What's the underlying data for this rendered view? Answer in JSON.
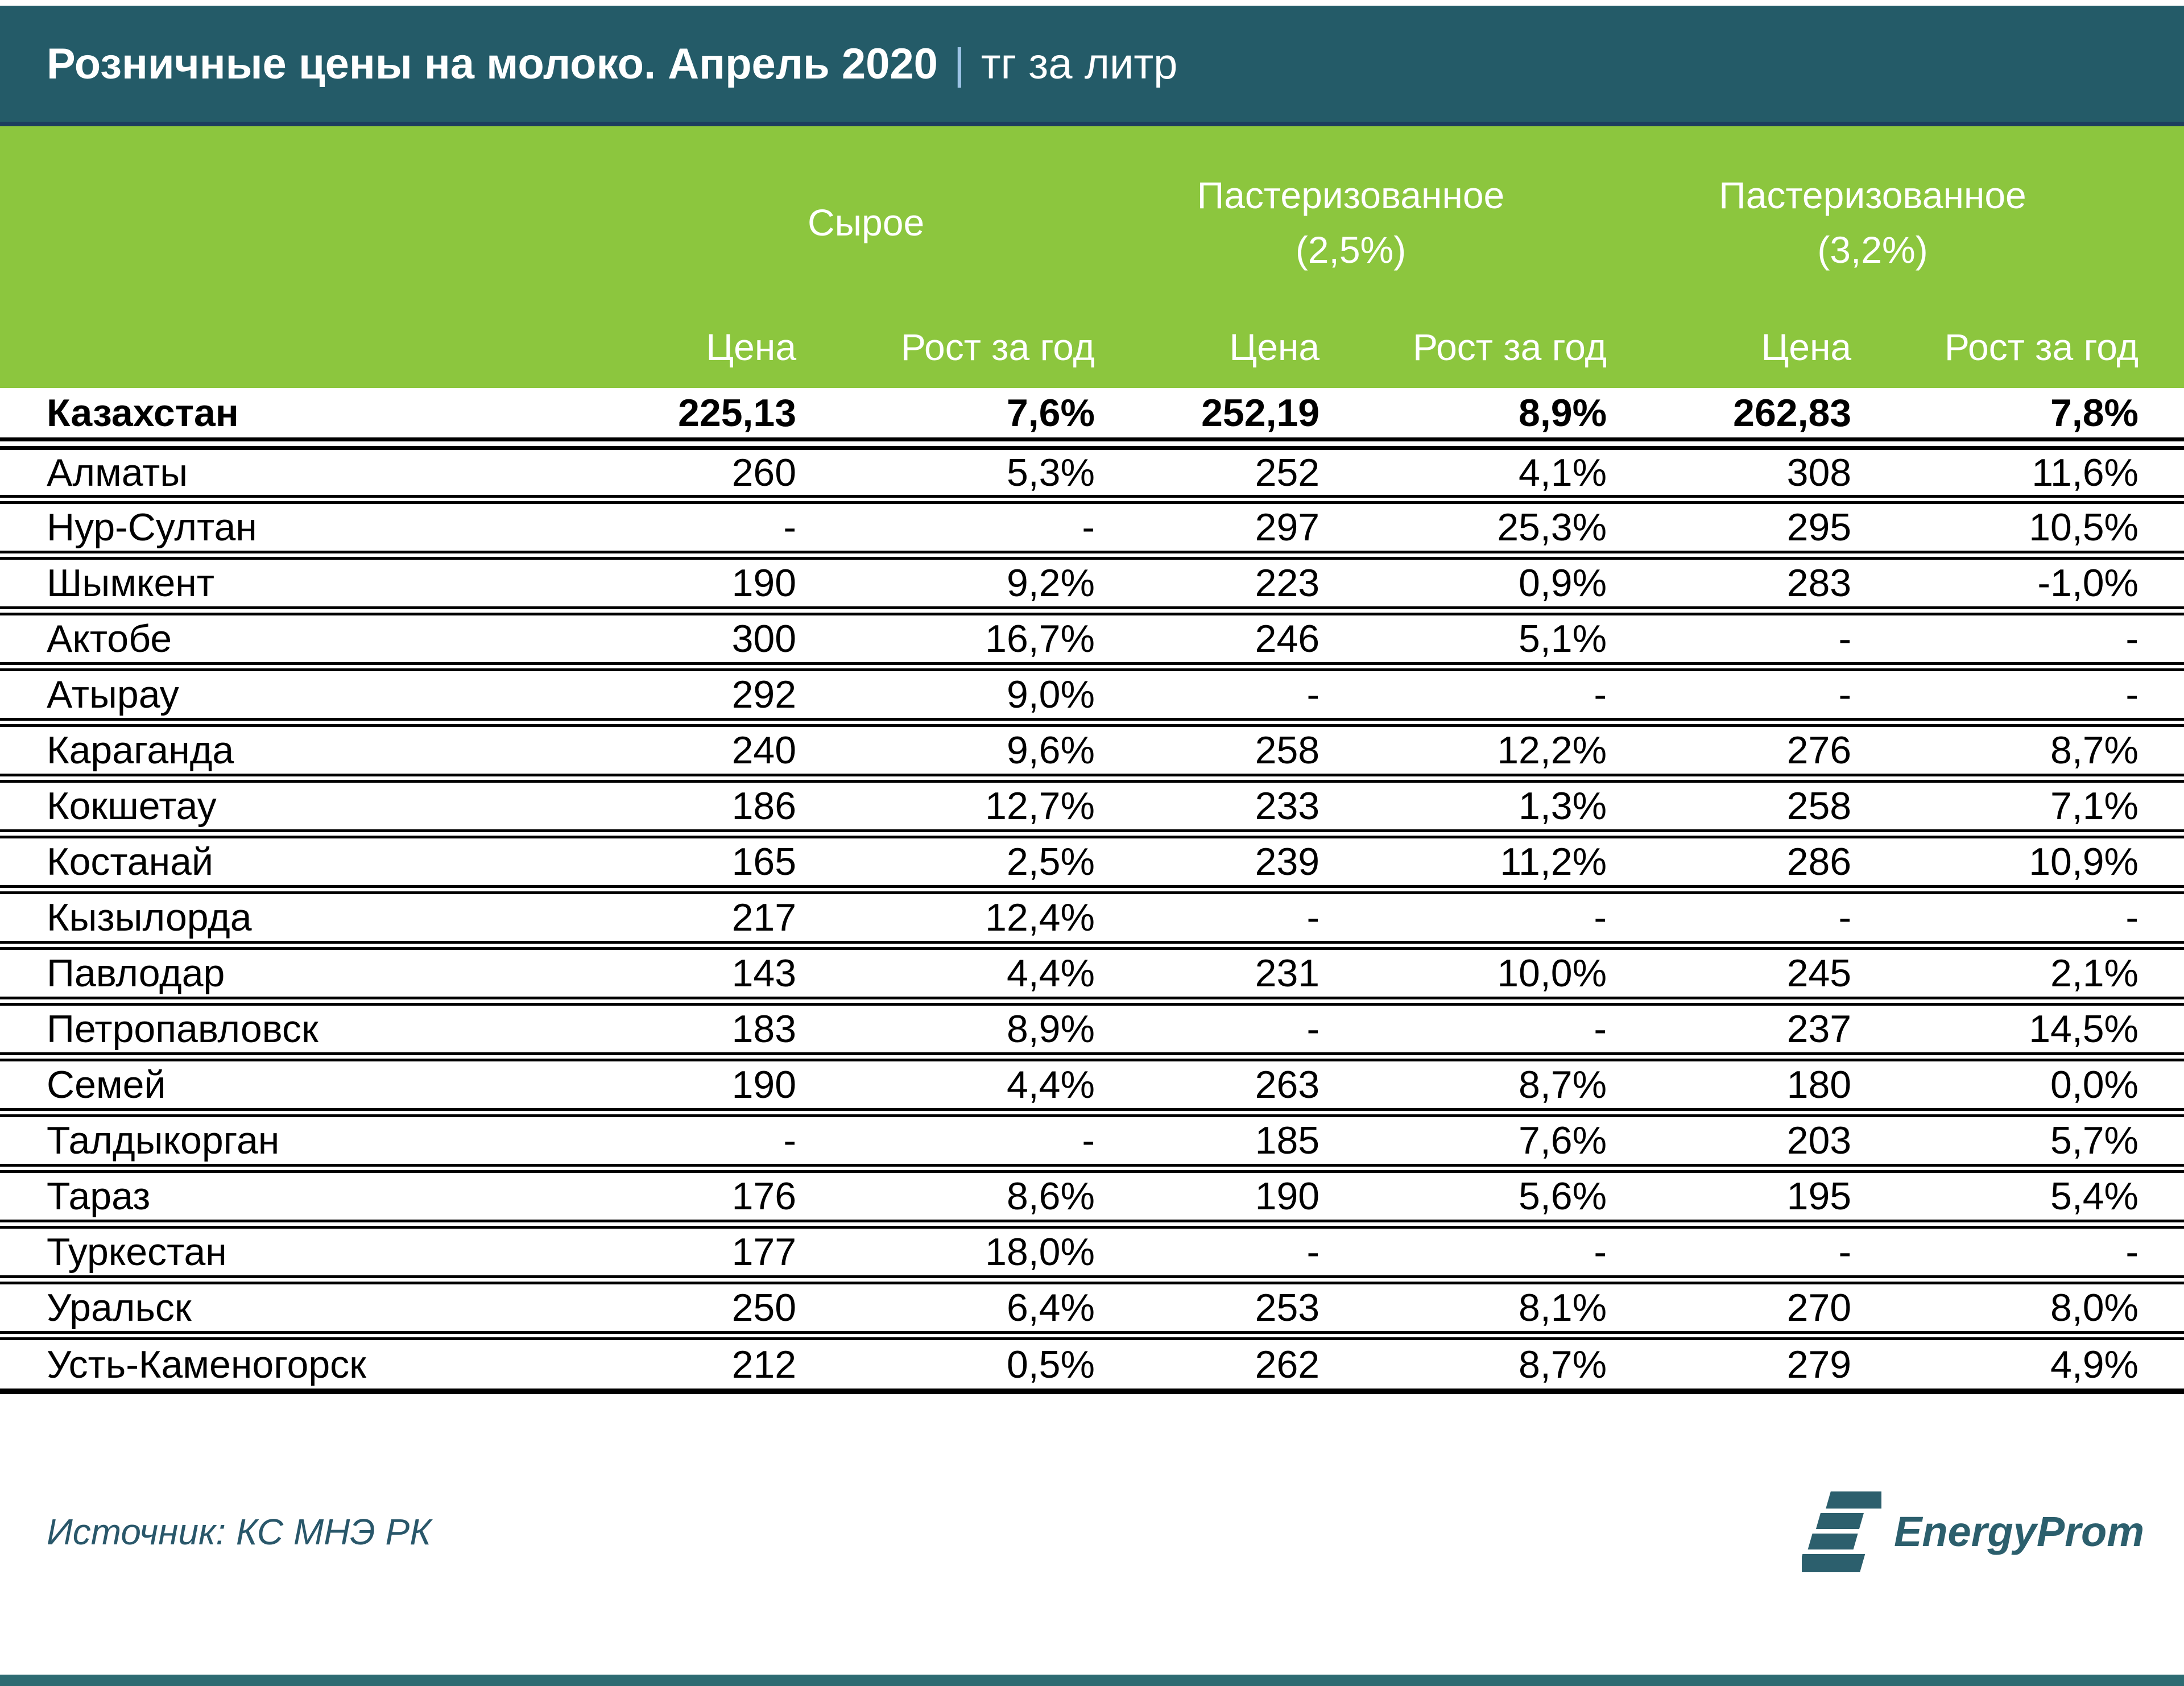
{
  "header": {
    "title": "Розничные цены на молоко. Апрель 2020",
    "separator": "|",
    "unit": "тг за литр"
  },
  "chart_data": {
    "type": "table",
    "title": "Розничные цены на молоко. Апрель 2020",
    "unit": "тг за литр",
    "column_groups": [
      {
        "line1": "Сырое",
        "line2": ""
      },
      {
        "line1": "Пастеризованное",
        "line2": "(2,5%)"
      },
      {
        "line1": "Пастеризованное",
        "line2": "(3,2%)"
      }
    ],
    "subheaders": [
      "Цена",
      "Рост за год",
      "Цена",
      "Рост за год",
      "Цена",
      "Рост за год"
    ],
    "rows": [
      {
        "name": "Казахстан",
        "bold": true,
        "values": [
          "225,13",
          "7,6%",
          "252,19",
          "8,9%",
          "262,83",
          "7,8%"
        ]
      },
      {
        "name": "Алматы",
        "bold": false,
        "values": [
          "260",
          "5,3%",
          "252",
          "4,1%",
          "308",
          "11,6%"
        ]
      },
      {
        "name": "Нур-Султан",
        "bold": false,
        "values": [
          "-",
          "-",
          "297",
          "25,3%",
          "295",
          "10,5%"
        ]
      },
      {
        "name": "Шымкент",
        "bold": false,
        "values": [
          "190",
          "9,2%",
          "223",
          "0,9%",
          "283",
          "-1,0%"
        ]
      },
      {
        "name": "Актобе",
        "bold": false,
        "values": [
          "300",
          "16,7%",
          "246",
          "5,1%",
          "-",
          "-"
        ]
      },
      {
        "name": "Атырау",
        "bold": false,
        "values": [
          "292",
          "9,0%",
          "-",
          "-",
          "-",
          "-"
        ]
      },
      {
        "name": "Караганда",
        "bold": false,
        "values": [
          "240",
          "9,6%",
          "258",
          "12,2%",
          "276",
          "8,7%"
        ]
      },
      {
        "name": "Кокшетау",
        "bold": false,
        "values": [
          "186",
          "12,7%",
          "233",
          "1,3%",
          "258",
          "7,1%"
        ]
      },
      {
        "name": "Костанай",
        "bold": false,
        "values": [
          "165",
          "2,5%",
          "239",
          "11,2%",
          "286",
          "10,9%"
        ]
      },
      {
        "name": "Кызылорда",
        "bold": false,
        "values": [
          "217",
          "12,4%",
          "-",
          "-",
          "-",
          "-"
        ]
      },
      {
        "name": "Павлодар",
        "bold": false,
        "values": [
          "143",
          "4,4%",
          "231",
          "10,0%",
          "245",
          "2,1%"
        ]
      },
      {
        "name": "Петропавловск",
        "bold": false,
        "values": [
          "183",
          "8,9%",
          "-",
          "-",
          "237",
          "14,5%"
        ]
      },
      {
        "name": "Семей",
        "bold": false,
        "values": [
          "190",
          "4,4%",
          "263",
          "8,7%",
          "180",
          "0,0%"
        ]
      },
      {
        "name": "Талдыкорган",
        "bold": false,
        "values": [
          "-",
          "-",
          "185",
          "7,6%",
          "203",
          "5,7%"
        ]
      },
      {
        "name": "Тараз",
        "bold": false,
        "values": [
          "176",
          "8,6%",
          "190",
          "5,6%",
          "195",
          "5,4%"
        ]
      },
      {
        "name": "Туркестан",
        "bold": false,
        "values": [
          "177",
          "18,0%",
          "-",
          "-",
          "-",
          "-"
        ]
      },
      {
        "name": "Уральск",
        "bold": false,
        "values": [
          "250",
          "6,4%",
          "253",
          "8,1%",
          "270",
          "8,0%"
        ]
      },
      {
        "name": "Усть-Каменогорск",
        "bold": false,
        "values": [
          "212",
          "0,5%",
          "262",
          "8,7%",
          "279",
          "4,9%"
        ]
      }
    ],
    "source": "Источник: КС МНЭ РК"
  },
  "footer": {
    "source": "Источник: КС МНЭ РК",
    "logo_text": "EnergyProm"
  },
  "colors": {
    "teal": "#245b68",
    "navy": "#1d3d5e",
    "green": "#8cc63e",
    "bottom_bar": "#2d6b72",
    "logo": "#2c5f6d",
    "source": "#29576a"
  }
}
